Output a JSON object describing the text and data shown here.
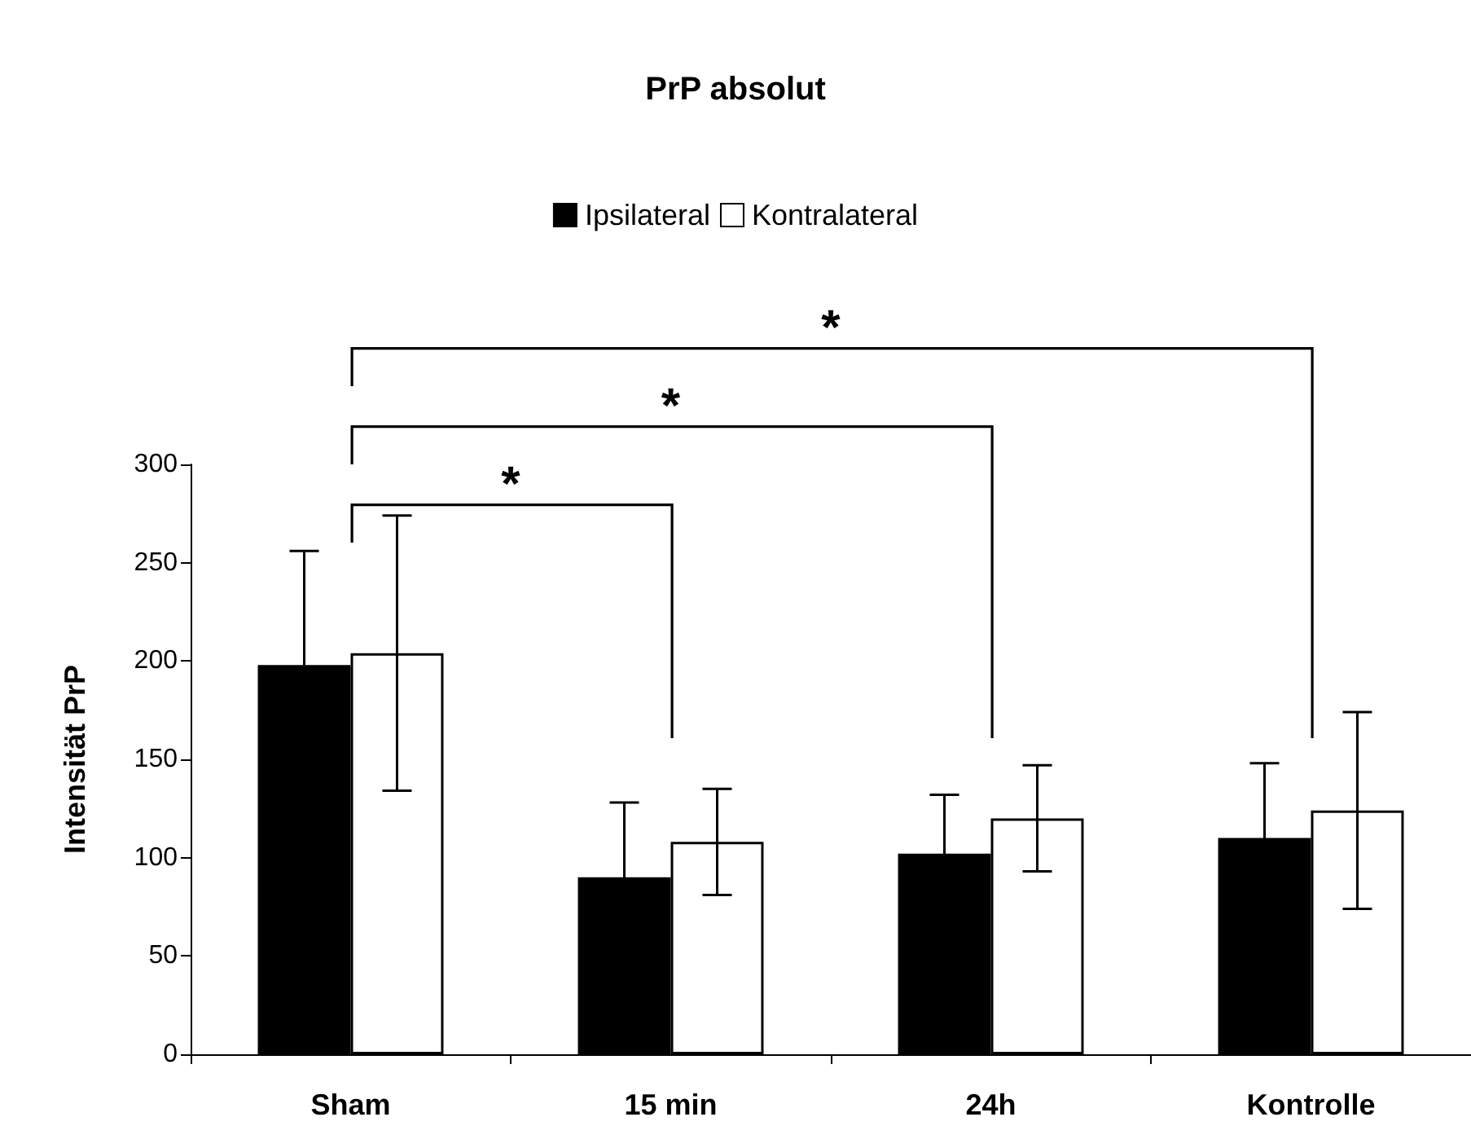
{
  "chart_data": {
    "type": "bar",
    "title": "PrP absolut",
    "ylabel": "Intensität PrP",
    "categories": [
      "Sham",
      "15 min",
      "24h",
      "Kontrolle"
    ],
    "series": [
      {
        "name": "Ipsilateral",
        "color": "#000000",
        "values": [
          198,
          90,
          102,
          110
        ],
        "errors": [
          58,
          38,
          30,
          38
        ]
      },
      {
        "name": "Kontralateral",
        "color": "#ffffff",
        "values": [
          204,
          108,
          120,
          124
        ],
        "errors": [
          70,
          27,
          27,
          50
        ]
      }
    ],
    "ylim": [
      0,
      300
    ],
    "yticks": [
      0,
      50,
      100,
      150,
      200,
      250,
      300
    ],
    "grid": false,
    "legend": "top",
    "annotations": [
      "*",
      "*",
      "*"
    ]
  }
}
